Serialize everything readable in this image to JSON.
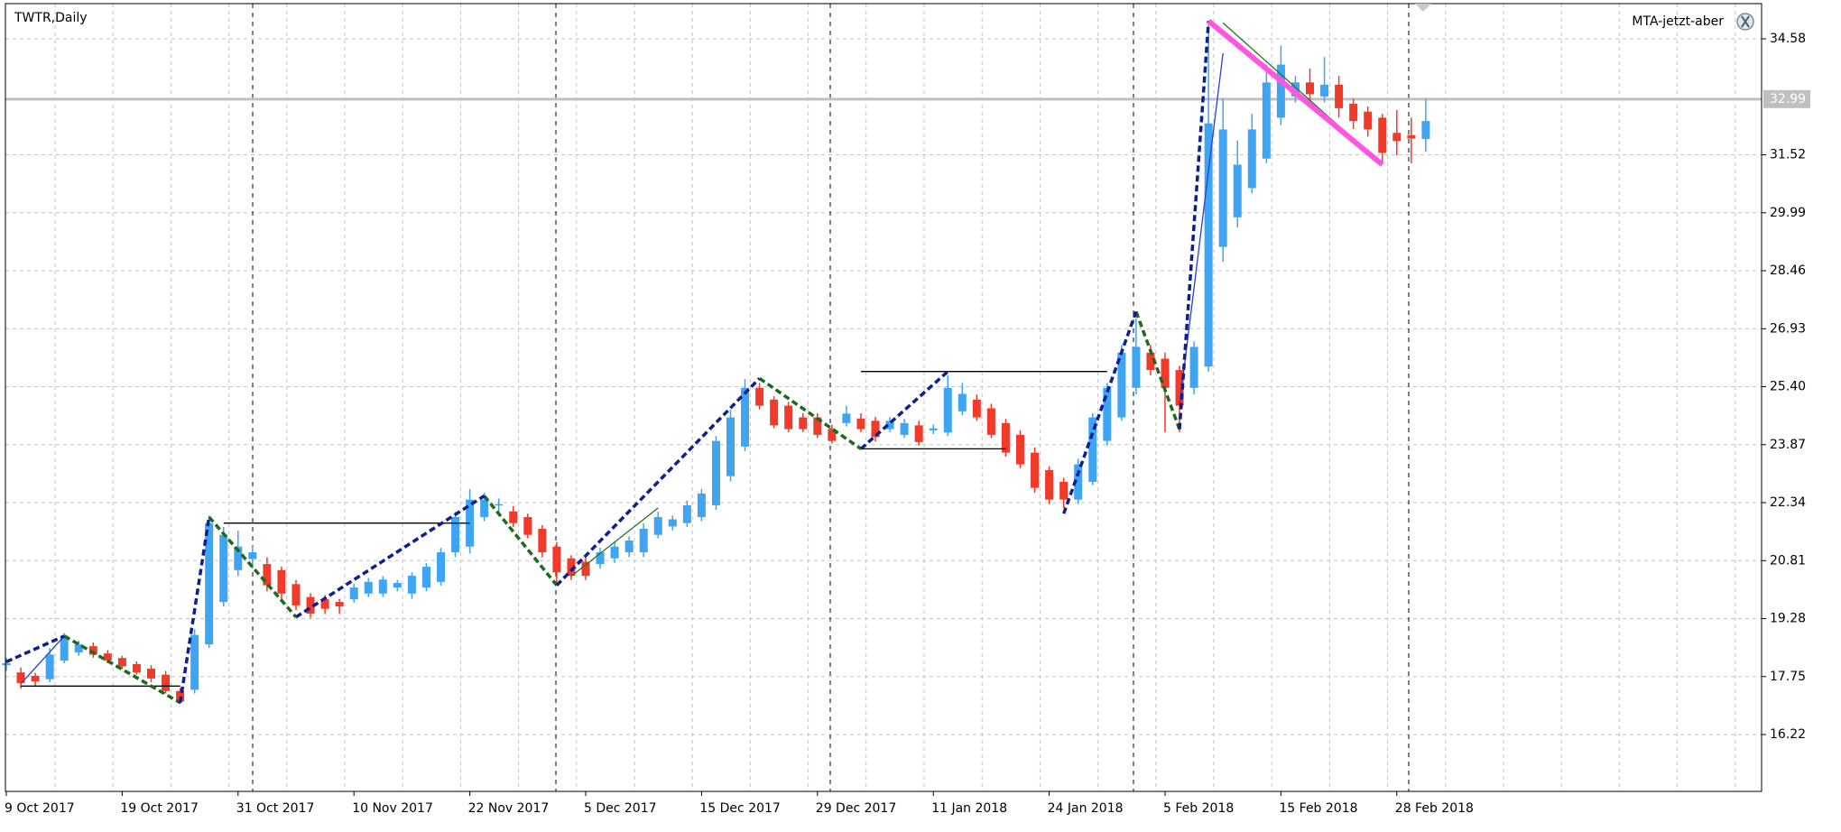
{
  "chart_data": {
    "type": "candlestick",
    "title": "TWTR,Daily",
    "annotations": [
      "MTA-jetzt-aber"
    ],
    "up_color": "#3fa5f2",
    "down_color": "#f03a2a",
    "grid": true,
    "ylim": [
      14.72,
      35.51
    ],
    "yticks": [
      34.58,
      31.52,
      29.99,
      28.46,
      26.93,
      {
        "value": 25.4,
        "label": "25.40"
      },
      23.87,
      22.34,
      20.81,
      19.28,
      17.75,
      16.22
    ],
    "bid": 32.99,
    "categories": [
      "9 Oct 2017",
      null,
      null,
      null,
      null,
      null,
      null,
      null,
      "19 Oct 2017",
      null,
      null,
      null,
      null,
      null,
      null,
      null,
      "31 Oct 2017",
      null,
      null,
      null,
      null,
      null,
      null,
      null,
      "10 Nov 2017",
      null,
      null,
      null,
      null,
      null,
      null,
      null,
      "22 Nov 2017",
      null,
      null,
      null,
      null,
      null,
      null,
      null,
      "5 Dec 2017",
      null,
      null,
      null,
      null,
      null,
      null,
      null,
      "15 Dec 2017",
      null,
      null,
      null,
      null,
      null,
      null,
      null,
      "29 Dec 2017",
      null,
      null,
      null,
      null,
      null,
      null,
      null,
      "11 Jan 2018",
      null,
      null,
      null,
      null,
      null,
      null,
      null,
      "24 Jan 2018",
      null,
      null,
      null,
      null,
      null,
      null,
      null,
      "5 Feb 2018",
      null,
      null,
      null,
      null,
      null,
      null,
      null,
      "15 Feb 2018",
      null,
      null,
      null,
      null,
      null,
      null,
      null,
      "28 Feb 2018",
      null,
      null
    ],
    "ohlc": [
      [
        18.05,
        18.25,
        17.9,
        18.1
      ],
      [
        17.86,
        17.99,
        17.43,
        17.58
      ],
      [
        17.77,
        17.85,
        17.5,
        17.62
      ],
      [
        17.68,
        18.5,
        17.6,
        18.33
      ],
      [
        18.17,
        18.9,
        18.1,
        18.82
      ],
      [
        18.39,
        18.7,
        18.3,
        18.6
      ],
      [
        18.55,
        18.65,
        18.25,
        18.33
      ],
      [
        18.36,
        18.45,
        18.1,
        18.17
      ],
      [
        18.24,
        18.3,
        17.95,
        18.02
      ],
      [
        18.08,
        18.15,
        17.8,
        17.86
      ],
      [
        17.96,
        18.05,
        17.6,
        17.7
      ],
      [
        17.8,
        17.9,
        17.3,
        17.37
      ],
      [
        17.37,
        17.45,
        17.03,
        17.09
      ],
      [
        17.4,
        19.0,
        17.3,
        18.85
      ],
      [
        18.6,
        22.0,
        18.5,
        21.8
      ],
      [
        19.72,
        21.7,
        19.6,
        21.49
      ],
      [
        20.56,
        21.6,
        20.4,
        21.18
      ],
      [
        20.85,
        21.2,
        20.6,
        21.03
      ],
      [
        20.72,
        20.9,
        20.0,
        20.16
      ],
      [
        20.56,
        20.65,
        19.8,
        19.94
      ],
      [
        20.19,
        20.3,
        19.5,
        19.63
      ],
      [
        19.85,
        19.95,
        19.3,
        19.41
      ],
      [
        19.79,
        19.9,
        19.4,
        19.54
      ],
      [
        19.72,
        19.8,
        19.4,
        19.6
      ],
      [
        19.79,
        20.2,
        19.7,
        20.1
      ],
      [
        19.94,
        20.35,
        19.85,
        20.25
      ],
      [
        19.94,
        20.4,
        19.85,
        20.31
      ],
      [
        20.1,
        20.3,
        20.0,
        20.22
      ],
      [
        19.94,
        20.5,
        19.8,
        20.41
      ],
      [
        20.1,
        20.75,
        20.0,
        20.65
      ],
      [
        20.25,
        21.15,
        20.15,
        21.03
      ],
      [
        21.03,
        22.1,
        20.9,
        21.96
      ],
      [
        21.18,
        22.7,
        21.0,
        22.42
      ],
      [
        21.96,
        22.6,
        21.85,
        22.42
      ],
      [
        22.27,
        22.45,
        22.1,
        22.3
      ],
      [
        22.11,
        22.25,
        21.7,
        21.8
      ],
      [
        21.96,
        22.05,
        21.4,
        21.49
      ],
      [
        21.65,
        21.75,
        20.9,
        21.03
      ],
      [
        21.18,
        21.3,
        20.2,
        20.5
      ],
      [
        20.87,
        20.95,
        20.3,
        20.41
      ],
      [
        20.78,
        20.9,
        20.3,
        20.41
      ],
      [
        20.72,
        21.15,
        20.6,
        21.03
      ],
      [
        20.87,
        21.3,
        20.75,
        21.18
      ],
      [
        21.03,
        21.45,
        20.9,
        21.34
      ],
      [
        21.03,
        21.8,
        20.9,
        21.65
      ],
      [
        21.49,
        22.1,
        21.4,
        21.96
      ],
      [
        21.71,
        22.0,
        21.6,
        21.9
      ],
      [
        21.8,
        22.4,
        21.7,
        22.27
      ],
      [
        21.96,
        22.7,
        21.85,
        22.58
      ],
      [
        22.27,
        24.1,
        22.15,
        23.97
      ],
      [
        23.04,
        24.8,
        22.9,
        24.59
      ],
      [
        23.82,
        25.6,
        23.7,
        25.37
      ],
      [
        25.37,
        25.5,
        24.8,
        24.9
      ],
      [
        25.06,
        25.15,
        24.3,
        24.38
      ],
      [
        24.9,
        25.0,
        24.2,
        24.28
      ],
      [
        24.59,
        24.7,
        24.2,
        24.28
      ],
      [
        24.59,
        24.7,
        24.05,
        24.13
      ],
      [
        24.28,
        24.4,
        23.9,
        23.97
      ],
      [
        24.44,
        24.9,
        24.35,
        24.69
      ],
      [
        24.56,
        24.7,
        24.2,
        24.28
      ],
      [
        24.5,
        24.6,
        23.95,
        24.07
      ],
      [
        24.28,
        24.6,
        24.2,
        24.5
      ],
      [
        24.13,
        24.55,
        24.05,
        24.44
      ],
      [
        24.38,
        24.5,
        23.85,
        23.94
      ],
      [
        24.25,
        24.4,
        24.15,
        24.3
      ],
      [
        24.19,
        25.7,
        24.1,
        25.37
      ],
      [
        24.75,
        25.5,
        24.65,
        25.21
      ],
      [
        25.06,
        25.2,
        24.5,
        24.59
      ],
      [
        24.83,
        24.95,
        24.05,
        24.13
      ],
      [
        24.44,
        24.55,
        23.55,
        23.66
      ],
      [
        24.13,
        24.25,
        23.25,
        23.35
      ],
      [
        23.66,
        23.8,
        22.6,
        22.73
      ],
      [
        23.2,
        23.3,
        22.3,
        22.42
      ],
      [
        22.89,
        23.0,
        22.2,
        22.42
      ],
      [
        22.42,
        23.5,
        22.3,
        23.35
      ],
      [
        22.89,
        24.7,
        22.8,
        24.59
      ],
      [
        23.97,
        25.5,
        23.85,
        25.37
      ],
      [
        24.59,
        26.5,
        24.5,
        26.3
      ],
      [
        25.37,
        27.2,
        25.2,
        26.45
      ],
      [
        26.3,
        26.5,
        25.7,
        25.84
      ],
      [
        26.14,
        26.3,
        24.2,
        25.37
      ],
      [
        25.84,
        25.95,
        24.2,
        24.9
      ],
      [
        25.37,
        26.6,
        25.2,
        26.45
      ],
      [
        25.93,
        35.0,
        25.8,
        32.35
      ],
      [
        29.09,
        33.0,
        28.7,
        32.19
      ],
      [
        29.87,
        31.9,
        29.6,
        31.26
      ],
      [
        30.64,
        32.6,
        30.5,
        32.19
      ],
      [
        31.42,
        33.9,
        31.3,
        33.43
      ],
      [
        32.5,
        34.4,
        32.3,
        33.9
      ],
      [
        33.06,
        33.6,
        32.9,
        33.43
      ],
      [
        33.43,
        33.8,
        32.9,
        33.12
      ],
      [
        33.06,
        34.1,
        32.9,
        33.37
      ],
      [
        33.37,
        33.6,
        32.5,
        32.75
      ],
      [
        32.87,
        33.0,
        32.2,
        32.41
      ],
      [
        32.66,
        32.8,
        32.0,
        32.19
      ],
      [
        32.5,
        32.6,
        31.3,
        31.57
      ],
      [
        32.1,
        32.7,
        31.5,
        31.88
      ],
      [
        32.04,
        32.5,
        31.3,
        31.95
      ],
      [
        31.94,
        33.0,
        31.6,
        32.41
      ]
    ],
    "overlays": [
      {
        "color": "#000000",
        "width": 1.3,
        "dashed": false,
        "x": [
          1,
          12,
          null,
          15,
          32,
          null,
          59,
          76,
          null,
          59,
          69
        ],
        "y": [
          17.5,
          17.5,
          null,
          21.8,
          21.8,
          null,
          25.8,
          25.8,
          null,
          23.76,
          23.76
        ]
      },
      {
        "color": "#2a3fd0",
        "width": 1.3,
        "dashed": false,
        "x": [
          1,
          4,
          null,
          81,
          84
        ],
        "y": [
          17.56,
          18.82,
          null,
          24.9,
          34.2
        ]
      },
      {
        "color": "#1e7a1e",
        "width": 1.3,
        "dashed": false,
        "x": [
          39,
          45,
          null,
          84,
          95
        ],
        "y": [
          20.4,
          22.2,
          null,
          35.0,
          31.26
        ]
      },
      {
        "color": "#1c6b1c",
        "width": 3.5,
        "dashed": true,
        "x": [
          4,
          12,
          null,
          14,
          20,
          null,
          33,
          38,
          null,
          52,
          59,
          null,
          78,
          81
        ],
        "y": [
          18.82,
          17.06,
          null,
          21.96,
          19.32,
          null,
          22.52,
          20.16,
          null,
          25.62,
          23.76,
          null,
          27.38,
          24.28
        ]
      },
      {
        "color": "#0f1f8f",
        "width": 3.5,
        "dashed": true,
        "x": [
          0,
          4,
          null,
          12,
          14,
          null,
          20,
          33,
          null,
          38,
          52,
          null,
          59,
          65,
          null,
          73,
          78,
          null,
          81,
          83
        ],
        "y": [
          18.14,
          18.82,
          null,
          17.06,
          21.96,
          null,
          19.32,
          22.52,
          null,
          20.16,
          25.62,
          null,
          23.76,
          25.8,
          null,
          22.05,
          27.38,
          null,
          24.28,
          35.05
        ]
      },
      {
        "color": "#ff55e0",
        "width": 6,
        "dashed": false,
        "x": [
          83,
          95
        ],
        "y": [
          35.05,
          31.26
        ]
      }
    ]
  }
}
